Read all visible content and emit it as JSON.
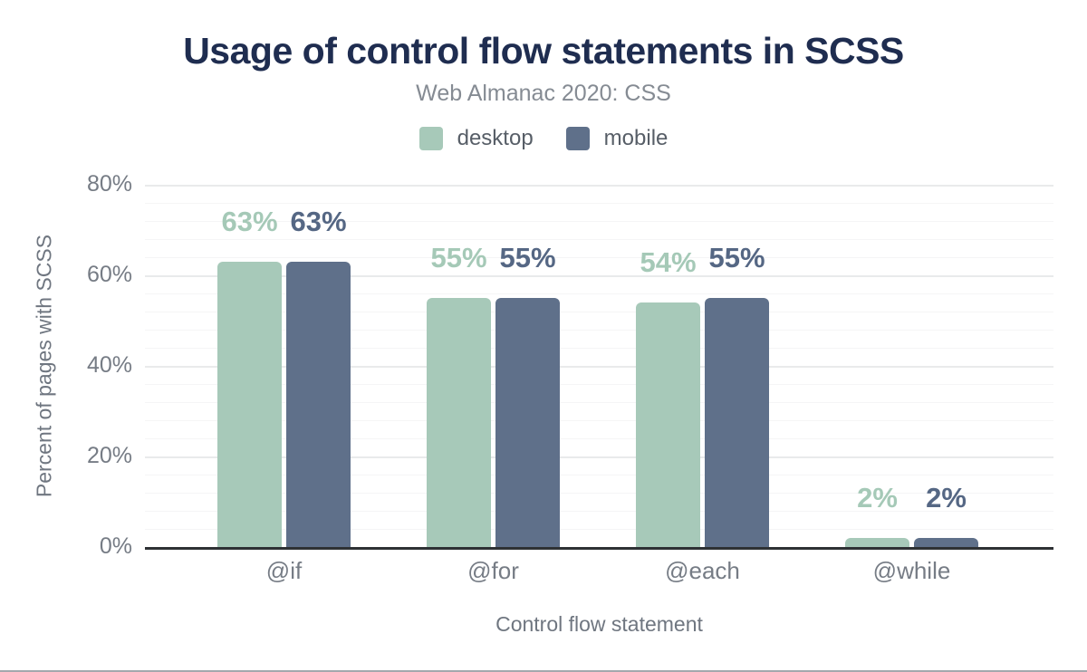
{
  "chart_data": {
    "type": "bar",
    "title": "Usage of control flow statements in SCSS",
    "subtitle": "Web Almanac 2020: CSS",
    "xlabel": "Control flow statement",
    "ylabel": "Percent of pages with SCSS",
    "categories": [
      "@if",
      "@for",
      "@each",
      "@while"
    ],
    "series": [
      {
        "name": "desktop",
        "color": "#a7c9b9",
        "label_color": "#a5c9b7",
        "values": [
          63,
          55,
          54,
          2
        ],
        "labels": [
          "63%",
          "55%",
          "54%",
          "2%"
        ]
      },
      {
        "name": "mobile",
        "color": "#5f708a",
        "label_color": "#556784",
        "values": [
          63,
          55,
          55,
          2
        ],
        "labels": [
          "63%",
          "55%",
          "55%",
          "2%"
        ]
      }
    ],
    "ylim": [
      0,
      80
    ],
    "yticks": [
      0,
      20,
      40,
      60,
      80
    ],
    "ytick_labels": [
      "0%",
      "20%",
      "40%",
      "60%",
      "80%"
    ],
    "grid": true,
    "minor_grid_step_pct": 4,
    "major_grid_step_pct": 20,
    "legend_position": "top"
  },
  "style": {
    "title_color": "#1f2d50",
    "subtitle_color": "#858b93",
    "legend_text_color": "#575e67",
    "tick_text_color": "#767c85",
    "axis_title_color": "#6f7680",
    "grid_minor_color": "#f5f5f6",
    "grid_major_color": "#e9eaeb",
    "baseline_color": "#2e3134",
    "bottom_rule_color": "#a4a8ad",
    "background_color": "#ffffff"
  }
}
